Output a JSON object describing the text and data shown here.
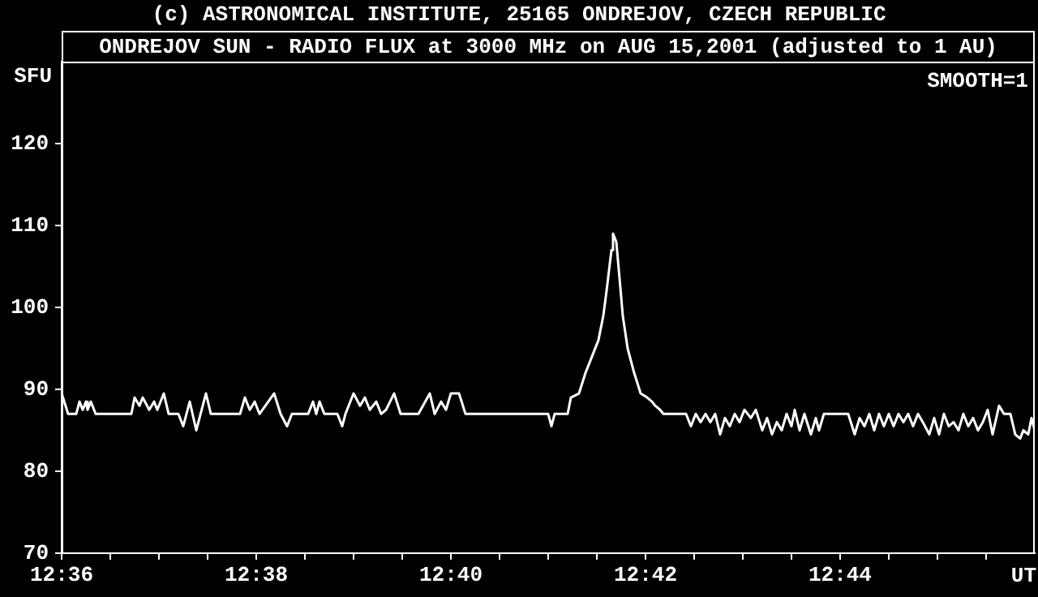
{
  "chart_data": {
    "type": "line",
    "title": "(c) ASTRONOMICAL INSTITUTE, 25165 ONDREJOV, CZECH REPUBLIC",
    "subtitle": "ONDREJOV SUN - RADIO FLUX at 3000 MHz on AUG 15,2001 (adjusted to 1 AU)",
    "xlabel": "UT",
    "ylabel": "SFU",
    "annotations": [
      "SMOOTH=1"
    ],
    "x": [
      12.6,
      12.60111,
      12.6025,
      12.60306,
      12.60361,
      12.60417,
      12.60444,
      12.605,
      12.60583,
      12.61194,
      12.6125,
      12.61333,
      12.61389,
      12.615,
      12.61583,
      12.61639,
      12.6175,
      12.61833,
      12.62,
      12.62083,
      12.62194,
      12.62306,
      12.62472,
      12.62556,
      12.63056,
      12.63139,
      12.63222,
      12.63306,
      12.63389,
      12.63639,
      12.6375,
      12.63861,
      12.63944,
      12.64222,
      12.64306,
      12.64361,
      12.64417,
      12.645,
      12.64722,
      12.64806,
      12.64861,
      12.65,
      12.65111,
      12.65194,
      12.65278,
      12.65389,
      12.65472,
      12.65556,
      12.65694,
      12.65806,
      12.66111,
      12.66306,
      12.66389,
      12.665,
      12.66583,
      12.66667,
      12.66806,
      12.66917,
      12.68333,
      12.68389,
      12.68444,
      12.68667,
      12.68722,
      12.68861,
      12.68972,
      12.69083,
      12.69194,
      12.69278,
      12.69333,
      12.69417,
      12.69444,
      12.695,
      12.69556,
      12.69611,
      12.69694,
      12.69806,
      12.69917,
      12.70028,
      12.70111,
      12.70167,
      12.7025,
      12.70306,
      12.70694,
      12.70778,
      12.70861,
      12.70944,
      12.71028,
      12.71111,
      12.71194,
      12.71278,
      12.71361,
      12.71444,
      12.71528,
      12.71611,
      12.71694,
      12.71806,
      12.71889,
      12.72,
      12.72083,
      12.72167,
      12.7225,
      12.72333,
      12.72417,
      12.725,
      12.72556,
      12.72639,
      12.72722,
      12.72833,
      12.72917,
      12.72972,
      12.73056,
      12.73472,
      12.73583,
      12.73667,
      12.7375,
      12.73833,
      12.73917,
      12.74,
      12.74083,
      12.74167,
      12.7425,
      12.74333,
      12.74417,
      12.745,
      12.74583,
      12.74667,
      12.7475,
      12.74861,
      12.74944,
      12.75028,
      12.75111,
      12.75194,
      12.75278,
      12.75361,
      12.75444,
      12.75528,
      12.75611,
      12.75694,
      12.75778,
      12.75861,
      12.75944,
      12.76056,
      12.76139,
      12.7625,
      12.76333,
      12.76417,
      12.76472,
      12.76556,
      12.76611,
      12.76667
    ],
    "series": [
      {
        "color": "#ffffff",
        "values": [
          89.5,
          87,
          87,
          88.5,
          87.5,
          88.5,
          87.5,
          88.5,
          87,
          87,
          89,
          88,
          89,
          87.5,
          88.5,
          87.5,
          89.5,
          87,
          87,
          85.5,
          88.5,
          85,
          89.5,
          87,
          87,
          89,
          87.5,
          88.5,
          87,
          89.5,
          87,
          85.5,
          87,
          87,
          88.5,
          87,
          88.5,
          87,
          87,
          85.5,
          87,
          89.5,
          88,
          89,
          87.5,
          88.5,
          87,
          87.5,
          89.5,
          87,
          87,
          89.5,
          87,
          88.5,
          87.5,
          89.5,
          89.5,
          87,
          87,
          85.5,
          87,
          87,
          89,
          89.5,
          92,
          94,
          96,
          99,
          102,
          107,
          109,
          108,
          103.5,
          99,
          95,
          92,
          89.5,
          89,
          88.5,
          88,
          87.5,
          87,
          87,
          85.5,
          87,
          86,
          87,
          86,
          87,
          84.5,
          86.5,
          85.5,
          87,
          86,
          87.5,
          86.5,
          87.5,
          85,
          86.5,
          84.5,
          86,
          85,
          87,
          85.5,
          87.5,
          85,
          87,
          84.5,
          86.5,
          85,
          87,
          87,
          84.5,
          86.5,
          85.5,
          87,
          85,
          87,
          85.5,
          87,
          85.5,
          87,
          86,
          87,
          85.5,
          87,
          86,
          84.5,
          86.5,
          84.5,
          87,
          85.5,
          86,
          85,
          87,
          85.5,
          86.5,
          85,
          86,
          87.5,
          84.5,
          88,
          87,
          87,
          84.5,
          84,
          85,
          84.5,
          86.5,
          85
        ]
      }
    ],
    "xlim": [
      12.6,
      12.76667
    ],
    "xticks": [
      {
        "value": 12.6,
        "label": "12:36"
      },
      {
        "value": 12.60833,
        "label": null
      },
      {
        "value": 12.61667,
        "label": null
      },
      {
        "value": 12.625,
        "label": null
      },
      {
        "value": 12.63333,
        "label": "12:38"
      },
      {
        "value": 12.64167,
        "label": null
      },
      {
        "value": 12.65,
        "label": null
      },
      {
        "value": 12.65833,
        "label": null
      },
      {
        "value": 12.66667,
        "label": "12:40"
      },
      {
        "value": 12.675,
        "label": null
      },
      {
        "value": 12.68333,
        "label": null
      },
      {
        "value": 12.69167,
        "label": null
      },
      {
        "value": 12.7,
        "label": "12:42"
      },
      {
        "value": 12.70833,
        "label": null
      },
      {
        "value": 12.71667,
        "label": null
      },
      {
        "value": 12.725,
        "label": null
      },
      {
        "value": 12.73333,
        "label": "12:44"
      },
      {
        "value": 12.74167,
        "label": null
      },
      {
        "value": 12.75,
        "label": null
      },
      {
        "value": 12.75833,
        "label": null
      }
    ],
    "ylim": [
      70,
      130
    ],
    "yticks": [
      70,
      80,
      90,
      100,
      110,
      120
    ],
    "marker": "none",
    "line_style": "solid"
  }
}
